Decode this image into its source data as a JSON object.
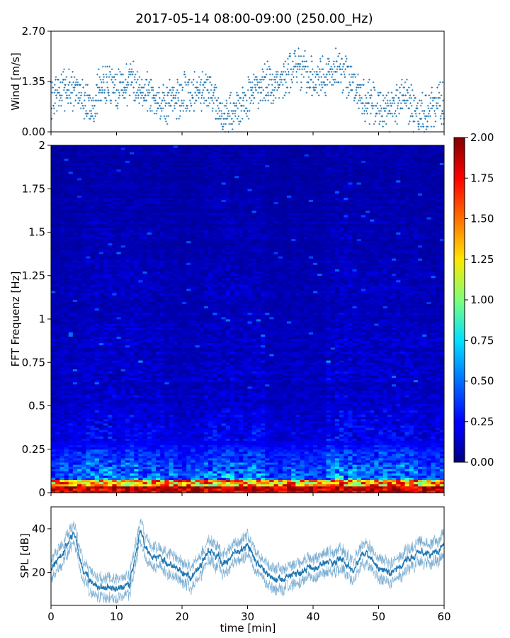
{
  "figure": {
    "title": "2017-05-14 08:00-09:00 (250.00_Hz)"
  },
  "chart_data": [
    {
      "panel": "wind",
      "type": "scatter",
      "title": "",
      "xlabel": "",
      "ylabel": "Wind [m/s]",
      "xlim": [
        0,
        60
      ],
      "ylim": [
        0,
        2.7
      ],
      "yticks": [
        "0.00",
        "1.35",
        "2.70"
      ],
      "marker_color": "#1f77b4",
      "series": [
        {
          "x": [
            0,
            2,
            4,
            6,
            8,
            10,
            12,
            14,
            16,
            18,
            20,
            22,
            24,
            26,
            28,
            30,
            32,
            34,
            36,
            38,
            40,
            42,
            44,
            46,
            48,
            50,
            52,
            54,
            56,
            58,
            60
          ],
          "y": [
            0.9,
            1.2,
            1.1,
            0.7,
            1.3,
            1.2,
            1.3,
            1.2,
            0.9,
            0.8,
            1.0,
            1.1,
            1.2,
            0.5,
            0.5,
            0.9,
            1.3,
            1.2,
            1.6,
            1.7,
            1.4,
            1.5,
            1.7,
            1.2,
            0.9,
            0.6,
            0.6,
            1.0,
            0.4,
            0.6,
            0.8
          ]
        }
      ]
    },
    {
      "panel": "spectrogram",
      "type": "heatmap",
      "title": "",
      "xlabel": "",
      "ylabel": "FFT Frequenz [Hz]",
      "xlim": [
        0,
        60
      ],
      "ylim": [
        0,
        2
      ],
      "yticks": [
        "0",
        "0.25",
        "0.5",
        "0.75",
        "1",
        "1.25",
        "1.5",
        "1.75",
        "2"
      ],
      "colormap": "jet",
      "colorbar": {
        "range": [
          0,
          2
        ],
        "ticks": [
          "0.00",
          "0.25",
          "0.50",
          "0.75",
          "1.00",
          "1.25",
          "1.50",
          "1.75",
          "2.00"
        ]
      }
    },
    {
      "panel": "spl",
      "type": "line",
      "title": "",
      "xlabel": "time [min]",
      "ylabel": "SPL [dB]",
      "xlim": [
        0,
        60
      ],
      "ylim": [
        5,
        50
      ],
      "xticks": [
        "0",
        "10",
        "20",
        "30",
        "40",
        "50",
        "60"
      ],
      "yticks": [
        "20",
        "40"
      ],
      "line_color": "#1f77b4",
      "series": [
        {
          "x": [
            0,
            2,
            3.5,
            5,
            7,
            10,
            12,
            13.5,
            15,
            17,
            19,
            21,
            23,
            24,
            26,
            28,
            30,
            32,
            34,
            36,
            38,
            40,
            42,
            44,
            46,
            48,
            50,
            52,
            54,
            56,
            58,
            60
          ],
          "y": [
            22,
            30,
            40,
            20,
            14,
            13,
            15,
            38,
            28,
            26,
            22,
            18,
            24,
            30,
            25,
            28,
            32,
            22,
            17,
            18,
            20,
            22,
            24,
            26,
            20,
            30,
            22,
            20,
            25,
            30,
            28,
            32
          ]
        }
      ]
    }
  ]
}
